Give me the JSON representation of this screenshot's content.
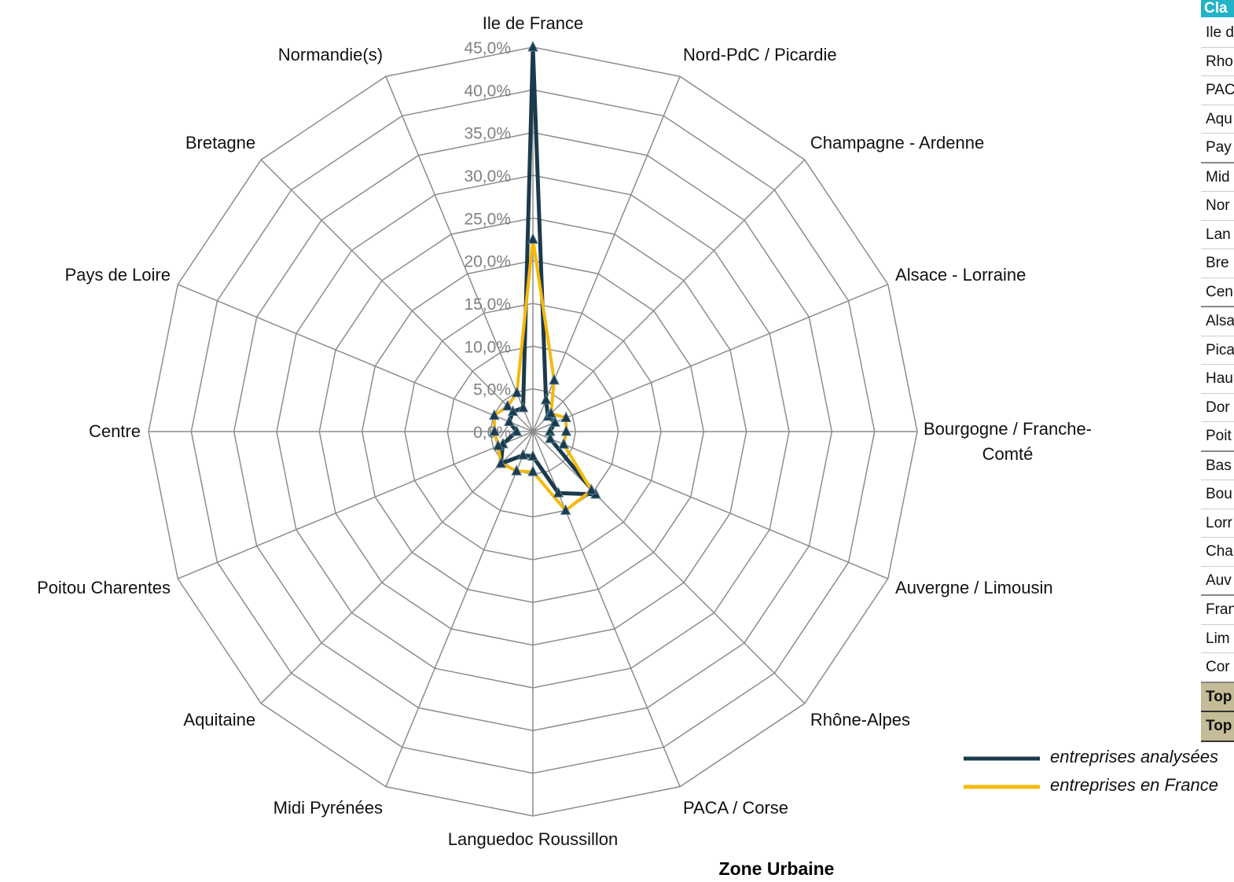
{
  "chart_data": {
    "type": "radar",
    "title": "Zone Urbaine",
    "categories": [
      "Ile de France",
      "Nord-PdC / Picardie",
      "Champagne - Ardenne",
      "Alsace - Lorraine",
      "Bourgogne / Franche-Comté",
      "Auvergne / Limousin",
      "Rhône-Alpes",
      "PACA / Corse",
      "Languedoc Roussillon",
      "Midi Pyrénées",
      "Aquitaine",
      "Poitou Charentes",
      "Centre",
      "Pays de Loire",
      "Bretagne",
      "Normandie(s)"
    ],
    "series": [
      {
        "name": "entreprises analysées",
        "color": "#1b3a4b",
        "values": [
          45,
          4.0,
          2.5,
          2.8,
          2.0,
          2.2,
          10.4,
          7.8,
          2.9,
          3.0,
          5.3,
          3.8,
          1.9,
          3.0,
          3.3,
          3.0
        ]
      },
      {
        "name": "entreprises en France",
        "color": "#f5b90a",
        "values": [
          22.5,
          6.5,
          3.0,
          4.2,
          3.9,
          3.9,
          9.7,
          10.0,
          4.7,
          5.0,
          5.3,
          4.4,
          4.5,
          4.9,
          4.2,
          4.9
        ]
      }
    ],
    "ylim": [
      0,
      45
    ],
    "yticks": [
      {
        "value": 0,
        "label": "0,0%"
      },
      {
        "value": 5,
        "label": "5,0%"
      },
      {
        "value": 10,
        "label": "10,0%"
      },
      {
        "value": 15,
        "label": "15,0%"
      },
      {
        "value": 20,
        "label": "20,0%"
      },
      {
        "value": 25,
        "label": "25,0%"
      },
      {
        "value": 30,
        "label": "30,0%"
      },
      {
        "value": 35,
        "label": "35,0%"
      },
      {
        "value": 40,
        "label": "40,0%"
      },
      {
        "value": 45,
        "label": "45,0%"
      }
    ],
    "grid": true
  },
  "table": {
    "header": "Cla",
    "rows": [
      "Ile d",
      "Rho",
      "PAC",
      "Aqu",
      "Pay",
      "Mid",
      "Nor",
      "Lan",
      "Bre",
      "Cen",
      "Alsa",
      "Pica",
      "Hau",
      "Dor",
      "Poit",
      "Bas",
      "Bou",
      "Lorr",
      "Cha",
      "Auv",
      "Fran",
      "Lim",
      "Cor",
      "Top",
      "Top"
    ]
  }
}
